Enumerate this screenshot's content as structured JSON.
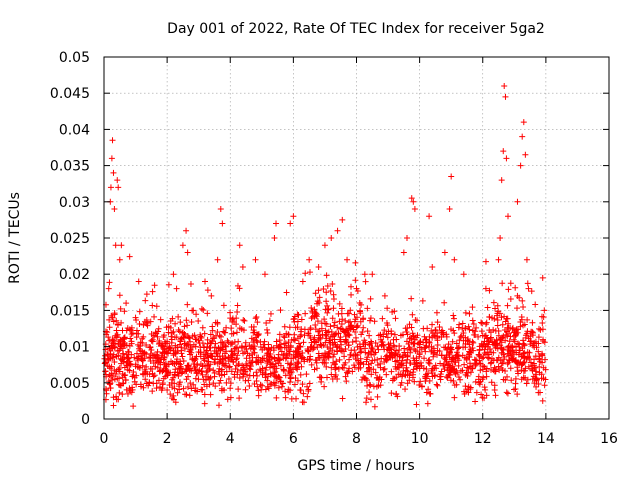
{
  "chart_data": {
    "type": "scatter",
    "title": "Day 001 of 2022, Rate Of TEC Index for receiver 5ga2",
    "xlabel": "GPS time / hours",
    "ylabel": "ROTI / TECUs",
    "xlim": [
      0,
      16
    ],
    "ylim": [
      0,
      0.05
    ],
    "xticks": [
      0,
      2,
      4,
      6,
      8,
      10,
      12,
      14,
      16
    ],
    "xtick_labels": [
      "0",
      "2",
      "4",
      "6",
      "8",
      "10",
      "12",
      "14",
      "16"
    ],
    "yticks": [
      0,
      0.005,
      0.01,
      0.015,
      0.02,
      0.025,
      0.03,
      0.035,
      0.04,
      0.045,
      0.05
    ],
    "ytick_labels": [
      "0",
      "0.005",
      "0.01",
      "0.015",
      "0.02",
      "0.025",
      "0.03",
      "0.035",
      "0.04",
      "0.045",
      "0.05"
    ],
    "grid": true,
    "marker": "+",
    "color": "#ff0000",
    "x_range_of_data": [
      0,
      14
    ],
    "series": [
      {
        "name": "ROTI",
        "points": [
          [
            0.1,
            0.012
          ],
          [
            0.15,
            0.018
          ],
          [
            0.2,
            0.03
          ],
          [
            0.22,
            0.032
          ],
          [
            0.25,
            0.036
          ],
          [
            0.27,
            0.0385
          ],
          [
            0.3,
            0.034
          ],
          [
            0.33,
            0.029
          ],
          [
            0.37,
            0.024
          ],
          [
            0.42,
            0.033
          ],
          [
            0.45,
            0.032
          ],
          [
            0.5,
            0.022
          ],
          [
            0.55,
            0.024
          ],
          [
            0.7,
            0.016
          ],
          [
            1.0,
            0.014
          ],
          [
            1.1,
            0.019
          ],
          [
            1.25,
            0.013
          ],
          [
            2.2,
            0.02
          ],
          [
            2.3,
            0.018
          ],
          [
            2.5,
            0.024
          ],
          [
            2.6,
            0.026
          ],
          [
            2.65,
            0.023
          ],
          [
            3.2,
            0.019
          ],
          [
            3.4,
            0.017
          ],
          [
            3.6,
            0.022
          ],
          [
            3.7,
            0.029
          ],
          [
            3.75,
            0.027
          ],
          [
            4.3,
            0.024
          ],
          [
            4.4,
            0.021
          ],
          [
            4.8,
            0.022
          ],
          [
            5.1,
            0.02
          ],
          [
            5.4,
            0.025
          ],
          [
            5.45,
            0.027
          ],
          [
            5.9,
            0.027
          ],
          [
            6.0,
            0.028
          ],
          [
            6.3,
            0.019
          ],
          [
            6.5,
            0.022
          ],
          [
            6.8,
            0.021
          ],
          [
            7.0,
            0.024
          ],
          [
            7.2,
            0.025
          ],
          [
            7.4,
            0.026
          ],
          [
            7.55,
            0.0275
          ],
          [
            7.7,
            0.022
          ],
          [
            8.0,
            0.018
          ],
          [
            8.5,
            0.02
          ],
          [
            8.9,
            0.017
          ],
          [
            9.5,
            0.023
          ],
          [
            9.6,
            0.025
          ],
          [
            9.75,
            0.0305
          ],
          [
            9.8,
            0.03
          ],
          [
            9.85,
            0.029
          ],
          [
            10.3,
            0.028
          ],
          [
            10.4,
            0.021
          ],
          [
            10.8,
            0.023
          ],
          [
            10.95,
            0.029
          ],
          [
            11.0,
            0.0335
          ],
          [
            11.1,
            0.022
          ],
          [
            11.4,
            0.02
          ],
          [
            12.1,
            0.018
          ],
          [
            12.5,
            0.022
          ],
          [
            12.55,
            0.025
          ],
          [
            12.6,
            0.033
          ],
          [
            12.65,
            0.037
          ],
          [
            12.68,
            0.046
          ],
          [
            12.72,
            0.0445
          ],
          [
            12.75,
            0.036
          ],
          [
            12.8,
            0.028
          ],
          [
            13.1,
            0.03
          ],
          [
            13.2,
            0.035
          ],
          [
            13.25,
            0.039
          ],
          [
            13.3,
            0.041
          ],
          [
            13.35,
            0.0365
          ],
          [
            13.4,
            0.022
          ],
          [
            13.45,
            0.018
          ],
          [
            13.9,
            0.0195
          ],
          [
            13.95,
            0.015
          ],
          [
            0.3,
            0.003
          ],
          [
            2.0,
            0.004
          ],
          [
            9.9,
            0.002
          ],
          [
            13.9,
            0.0025
          ]
        ]
      }
    ]
  }
}
